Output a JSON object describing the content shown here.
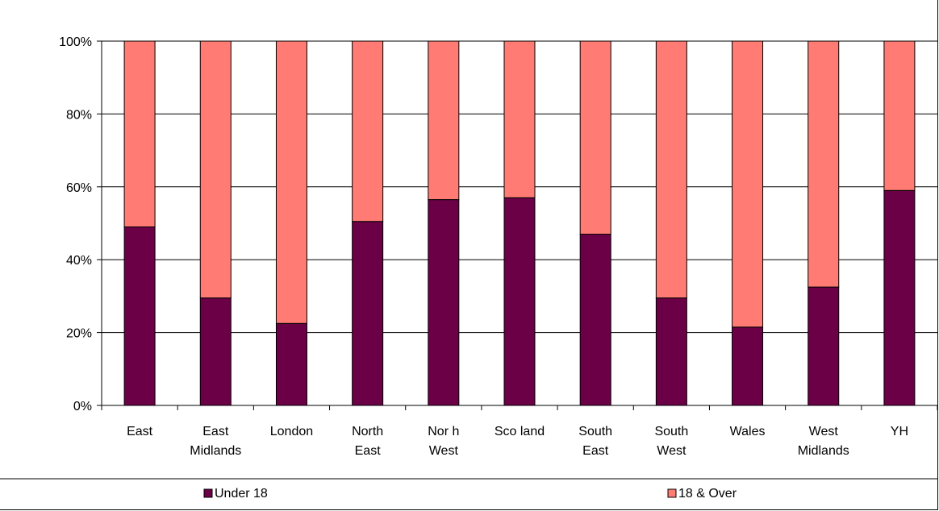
{
  "chart_data": {
    "type": "bar",
    "stacked": true,
    "normalized": true,
    "title": "",
    "xlabel": "",
    "ylabel": "",
    "ylim": [
      0,
      100
    ],
    "yticks": [
      "0%",
      "20%",
      "40%",
      "60%",
      "80%",
      "100%"
    ],
    "categories": [
      [
        "East"
      ],
      [
        "East",
        "Midlands"
      ],
      [
        "London"
      ],
      [
        "North",
        "East"
      ],
      [
        "Nor h",
        "West"
      ],
      [
        "Sco land"
      ],
      [
        "South",
        "East"
      ],
      [
        "South",
        "West"
      ],
      [
        "Wales"
      ],
      [
        "West",
        "Midlands"
      ],
      [
        "YH"
      ]
    ],
    "series": [
      {
        "name": "Under 18",
        "color": "#6B0047",
        "values": [
          49,
          29.5,
          22.5,
          50.5,
          56.5,
          57,
          47,
          29.5,
          21.5,
          32.5,
          59
        ]
      },
      {
        "name": "18 & Over",
        "color": "#FF7B73",
        "values": [
          51,
          70.5,
          77.5,
          49.5,
          43.5,
          43,
          53,
          70.5,
          78.5,
          67.5,
          41
        ]
      }
    ],
    "grid": true,
    "legend": "bottom"
  }
}
